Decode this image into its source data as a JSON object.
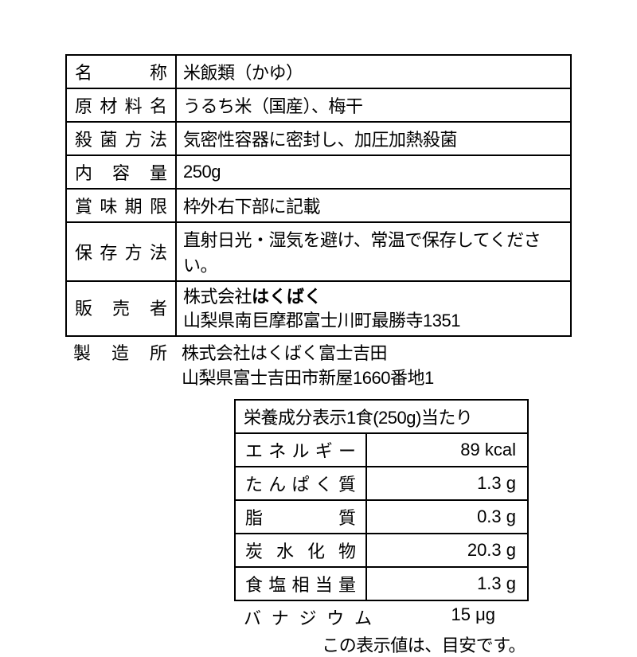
{
  "main": {
    "rows": [
      {
        "label": "名称",
        "value": "米飯類（かゆ）"
      },
      {
        "label": "原材料名",
        "value": "うるち米（国産）、梅干"
      },
      {
        "label": "殺菌方法",
        "value": "気密性容器に密封し、加圧加熱殺菌"
      },
      {
        "label": "内容量",
        "value": "250g"
      },
      {
        "label": "賞味期限",
        "value": "枠外右下部に記載"
      },
      {
        "label": "保存方法",
        "value": "直射日光・湿気を避け、常温で保存してください。"
      }
    ],
    "seller": {
      "label": "販売者",
      "company_prefix": "株式会社",
      "company_brand": "はくばく",
      "address": "山梨県南巨摩郡富士川町最勝寺1351"
    }
  },
  "manufacturer": {
    "label": "製造所",
    "name": "株式会社はくばく富士吉田",
    "address": "山梨県富士吉田市新屋1660番地1"
  },
  "nutrition": {
    "header": "栄養成分表示1食(250g)当たり",
    "rows": [
      {
        "label": "エネルギー",
        "value": "89 kcal"
      },
      {
        "label": "たんぱく質",
        "value": "1.3 g"
      },
      {
        "label": "脂質",
        "value": "0.3 g"
      },
      {
        "label": "炭水化物",
        "value": "20.3 g"
      },
      {
        "label": "食塩相当量",
        "value": "1.3 g"
      }
    ],
    "extra": {
      "label": "バナジウム",
      "value": "15 μg"
    },
    "note": "この表示値は、目安です。"
  }
}
